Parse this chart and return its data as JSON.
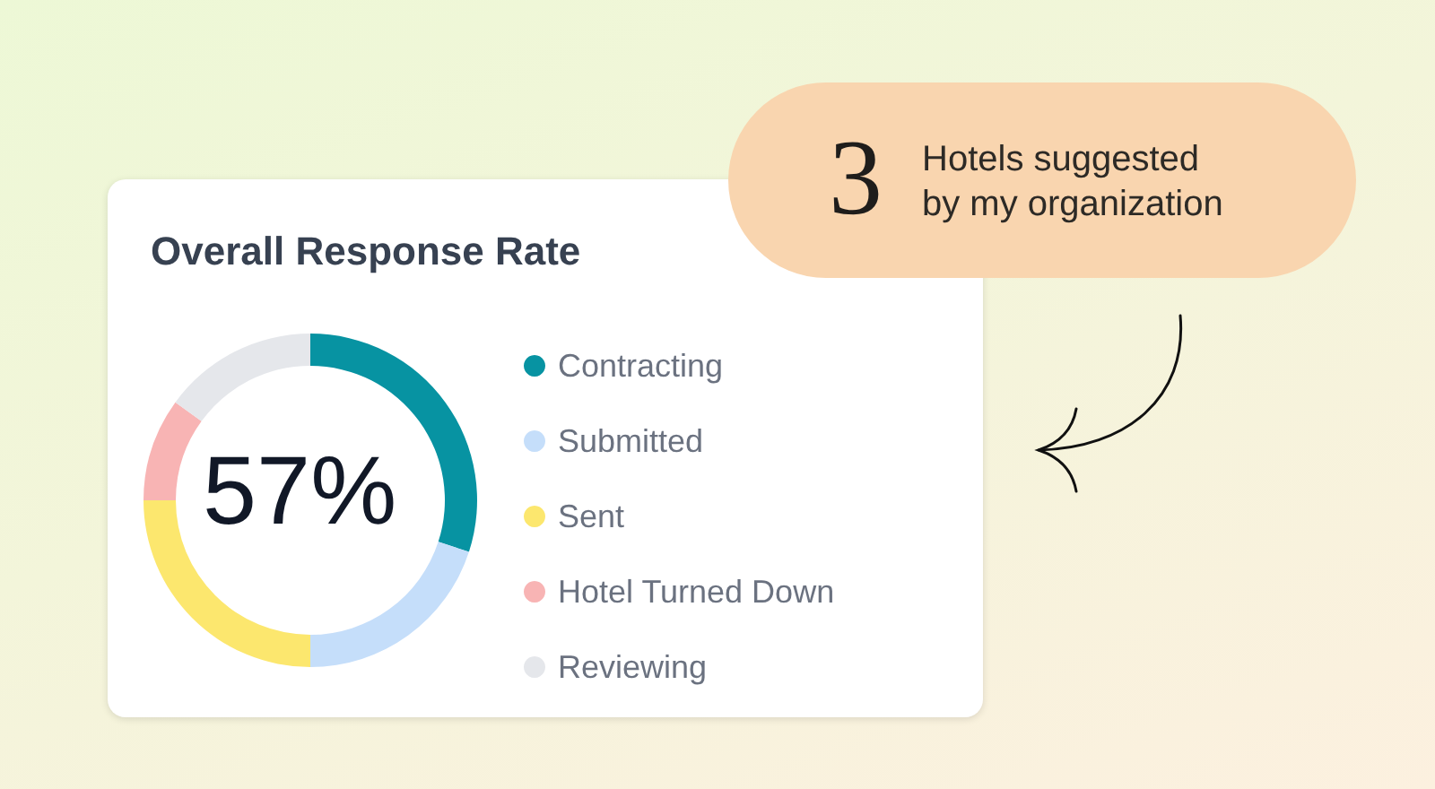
{
  "chart_data": {
    "type": "donut",
    "title": "Overall Response Rate",
    "categories": [
      "Contracting",
      "Submitted",
      "Sent",
      "Hotel Turned Down",
      "Reviewing"
    ],
    "values": [
      30,
      20,
      25,
      10,
      15
    ],
    "colors": [
      "#0793a2",
      "#c5defa",
      "#fce76e",
      "#f8b4b4",
      "#e5e7eb"
    ],
    "legend": "right",
    "annotations": [
      "57%",
      "3",
      "Hotels suggested by my organization"
    ]
  }
}
